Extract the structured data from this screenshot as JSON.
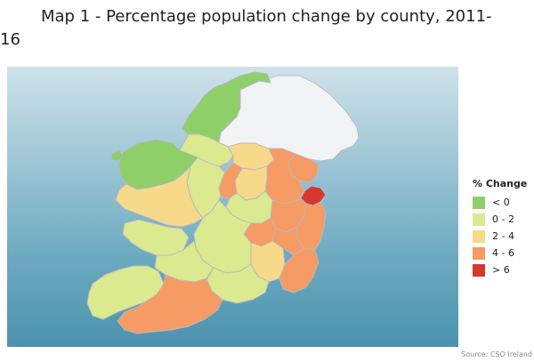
{
  "title": {
    "line1": "Map 1 - Percentage population change by county, 2011-",
    "line2": "16"
  },
  "legend": {
    "title": "% Change",
    "items": [
      {
        "label": "< 0",
        "color": "#8fcf6a"
      },
      {
        "label": "0 - 2",
        "color": "#dbe98f"
      },
      {
        "label": "2 - 4",
        "color": "#f7d98a"
      },
      {
        "label": "4 - 6",
        "color": "#f59b63"
      },
      {
        "label": "> 6",
        "color": "#d6372f"
      }
    ]
  },
  "source": "Source: CSO Ireland",
  "colors": {
    "northern_ireland": "#f2f3f4",
    "county_border": "#b8b8c8",
    "sea_top": "#cfe2ea",
    "sea_bottom": "#4c93ad"
  }
}
